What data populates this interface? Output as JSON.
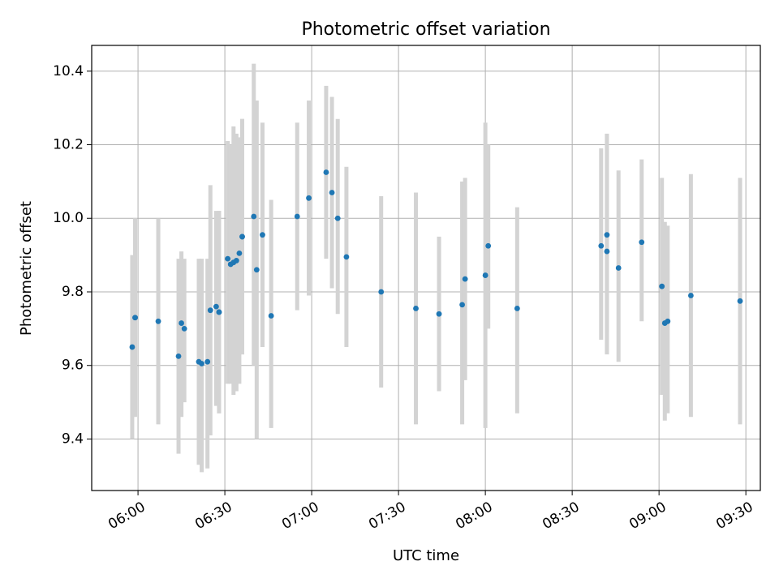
{
  "chart_data": {
    "type": "scatter",
    "title": "Photometric offset variation",
    "xlabel": "UTC time",
    "ylabel": "Photometric offset",
    "x_tick_labels": [
      "06:00",
      "06:30",
      "07:00",
      "07:30",
      "08:00",
      "08:30",
      "09:00",
      "09:30"
    ],
    "x_ticks": [
      "06:00",
      "06:30",
      "07:00",
      "07:30",
      "08:00",
      "08:30",
      "09:00",
      "09:30"
    ],
    "y_ticks": [
      9.4,
      9.6,
      9.8,
      10.0,
      10.2,
      10.4
    ],
    "y_tick_labels": [
      "9.4",
      "9.6",
      "9.8",
      "10.0",
      "10.2",
      "10.4"
    ],
    "xlim": [
      "05:44",
      "09:35"
    ],
    "ylim": [
      9.26,
      10.47
    ],
    "grid": true,
    "colors": {
      "points": "#1f77b4",
      "error_bars": "#d3d3d3"
    },
    "series": [
      {
        "x": [
          "05:58",
          "05:59",
          "05:59",
          "06:07",
          "06:14",
          "06:15",
          "06:16",
          "06:21",
          "06:22",
          "06:24",
          "06:25",
          "06:27",
          "06:28",
          "06:28",
          "06:31",
          "06:32",
          "06:33",
          "06:34",
          "06:35",
          "06:36",
          "06:36",
          "06:40",
          "06:41",
          "06:43",
          "06:46",
          "06:55",
          "06:59",
          "07:05",
          "07:07",
          "07:09",
          "07:12",
          "07:24",
          "07:36",
          "07:44",
          "07:52",
          "07:53",
          "08:00",
          "08:01",
          "08:11",
          "08:40",
          "08:42",
          "08:42",
          "08:46",
          "08:54",
          "09:01",
          "09:02",
          "09:03",
          "09:11",
          "09:28"
        ],
        "y": [
          9.65,
          9.73,
          9.73,
          9.72,
          9.625,
          9.715,
          9.7,
          9.61,
          9.605,
          9.61,
          9.75,
          9.76,
          9.745,
          9.745,
          9.89,
          9.875,
          9.88,
          9.885,
          9.905,
          9.95,
          9.95,
          10.005,
          9.86,
          9.955,
          9.735,
          10.005,
          10.055,
          10.125,
          10.07,
          10.0,
          9.895,
          9.8,
          9.755,
          9.74,
          9.765,
          9.835,
          9.845,
          9.925,
          9.755,
          9.925,
          9.91,
          9.955,
          9.865,
          9.935,
          9.815,
          9.715,
          9.72,
          9.79,
          9.775
        ],
        "y_low": [
          9.4,
          9.46,
          9.47,
          9.44,
          9.36,
          9.46,
          9.5,
          9.33,
          9.31,
          9.32,
          9.41,
          9.49,
          9.47,
          9.47,
          9.55,
          9.55,
          9.52,
          9.53,
          9.55,
          9.63,
          9.63,
          9.6,
          9.4,
          9.65,
          9.43,
          9.75,
          9.79,
          9.89,
          9.81,
          9.74,
          9.65,
          9.54,
          9.44,
          9.53,
          9.44,
          9.56,
          9.43,
          9.7,
          9.47,
          9.67,
          9.63,
          9.69,
          9.61,
          9.72,
          9.52,
          9.45,
          9.47,
          9.46,
          9.44
        ],
        "y_high": [
          9.9,
          10.0,
          10.0,
          10.0,
          9.89,
          9.91,
          9.89,
          9.89,
          9.89,
          9.89,
          10.09,
          10.02,
          10.02,
          10.02,
          10.21,
          10.2,
          10.25,
          10.23,
          10.22,
          10.27,
          10.27,
          10.42,
          10.32,
          10.26,
          10.05,
          10.26,
          10.32,
          10.36,
          10.33,
          10.27,
          10.14,
          10.06,
          10.07,
          9.95,
          10.1,
          10.11,
          10.26,
          10.2,
          10.03,
          10.19,
          10.19,
          10.23,
          10.13,
          10.16,
          10.11,
          9.99,
          9.98,
          10.12,
          10.11
        ]
      }
    ]
  }
}
